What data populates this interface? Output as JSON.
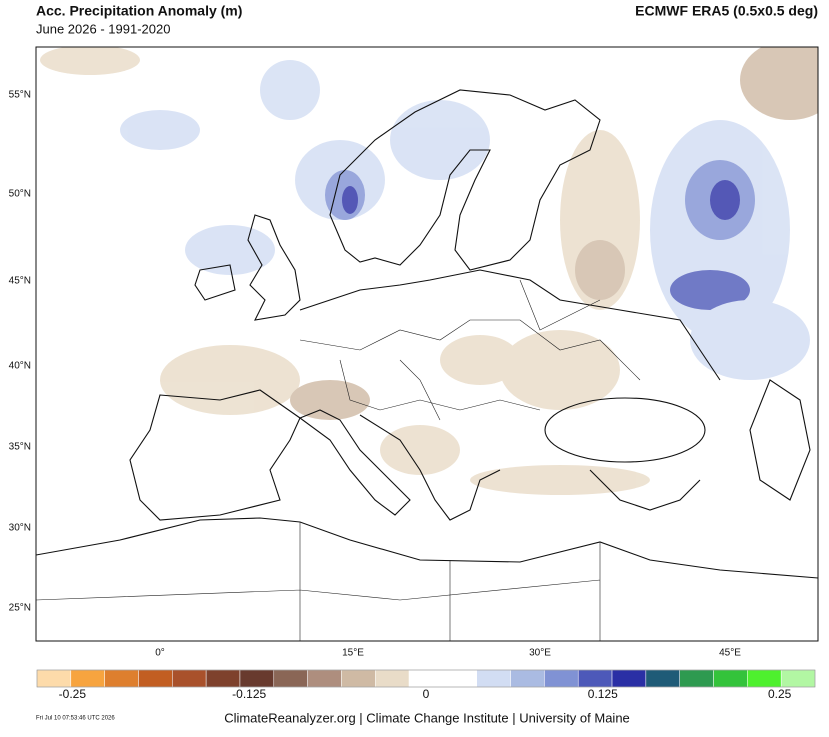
{
  "header": {
    "title": "Acc. Precipitation Anomaly (m)",
    "subtitle": "June 2026 - 1991-2020",
    "dataset": "ECMWF ERA5 (0.5x0.5 deg)"
  },
  "map": {
    "lat_labels": [
      "55°N",
      "50°N",
      "45°N",
      "40°N",
      "35°N",
      "30°N",
      "25°N"
    ],
    "lon_labels": [
      "0°",
      "15°E",
      "30°E",
      "45°E"
    ]
  },
  "colorbar": {
    "range": [
      -0.275,
      0.275
    ],
    "colors": [
      "#fddbaa",
      "#f7a43f",
      "#de7f2e",
      "#c25e22",
      "#a9512b",
      "#7e412c",
      "#683a2e",
      "#8a6656",
      "#ae8e7e",
      "#cfbaa4",
      "#e9dcc8",
      "#ffffff",
      "#ffffff",
      "#d2ddf3",
      "#aabbe2",
      "#8092d4",
      "#4d59b9",
      "#2a2fa5",
      "#1f5b77",
      "#2e9a50",
      "#34c33b",
      "#4ef02e",
      "#b2f7a3"
    ],
    "ticks": [
      -0.25,
      -0.125,
      0,
      0.125,
      0.25
    ]
  },
  "footer": {
    "timestamp": "Fri Jul 10 07:53:46 UTC 2026",
    "source": "ClimateReanalyzer.org | Climate Change Institute | University of Maine"
  }
}
